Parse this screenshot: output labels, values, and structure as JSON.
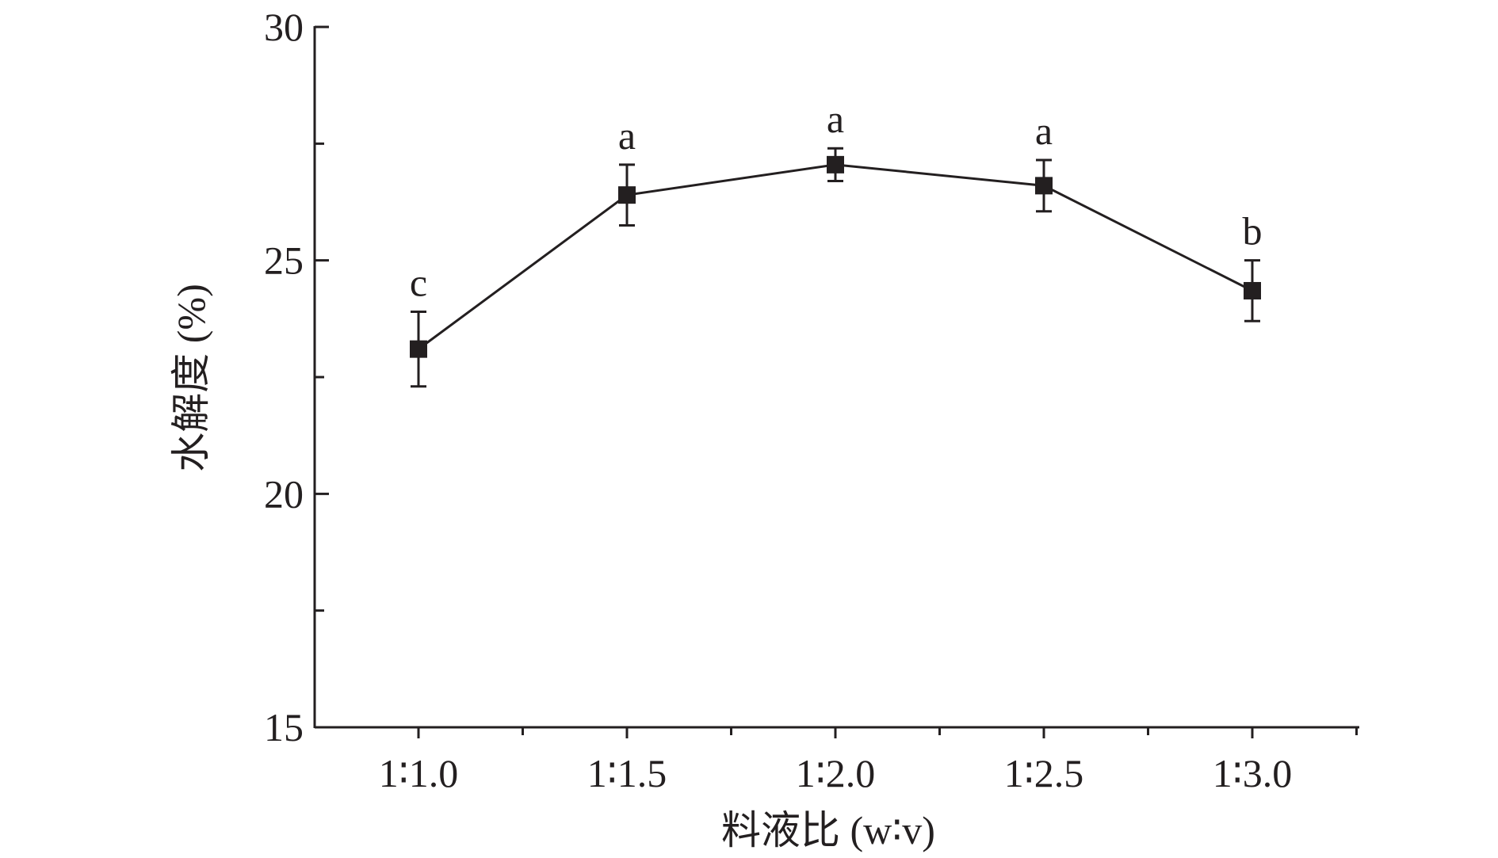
{
  "chart_data": {
    "type": "line",
    "xlabel": "料液比 (w∶v)",
    "ylabel": "水解度 (%)",
    "categories": [
      "1∶1.0",
      "1∶1.5",
      "1∶2.0",
      "1∶2.5",
      "1∶3.0"
    ],
    "series": [
      {
        "values": [
          23.1,
          26.4,
          27.05,
          26.6,
          24.35
        ],
        "errors": [
          0.8,
          0.65,
          0.35,
          0.55,
          0.65
        ],
        "labels": [
          "c",
          "a",
          "a",
          "a",
          "b"
        ]
      }
    ],
    "ylim": [
      15,
      30
    ],
    "yticks": [
      15,
      20,
      25,
      30
    ],
    "grid": false,
    "line_color": "#231f20",
    "marker": "square"
  }
}
